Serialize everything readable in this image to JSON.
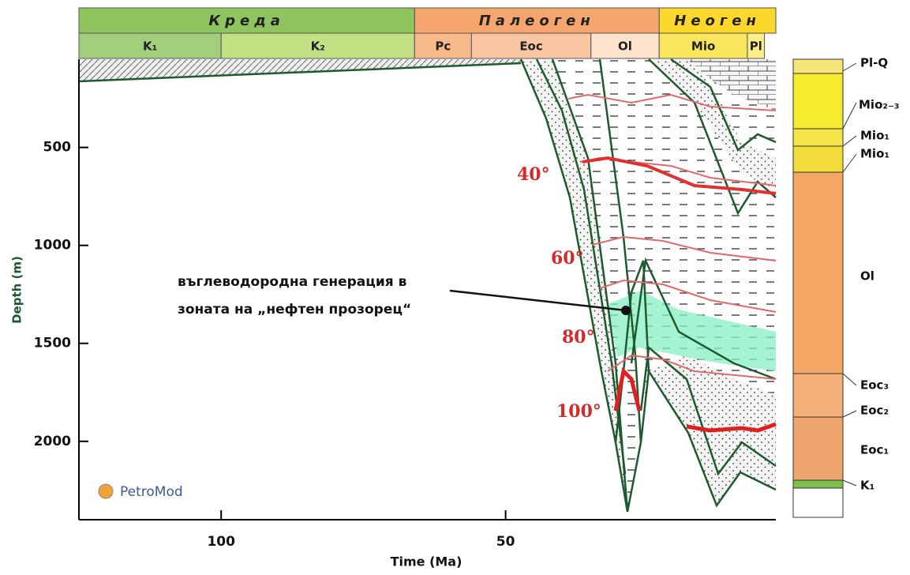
{
  "chart_data": {
    "type": "burial",
    "x_label": "Time (Ma)",
    "y_label": "Depth (m)",
    "xlim": [
      125,
      2.5
    ],
    "ylim": [
      50,
      2400
    ],
    "xticks": [
      100,
      50
    ],
    "yticks": [
      500,
      1000,
      1500,
      2000
    ],
    "periods": [
      {
        "name": "Креда",
        "range": [
          125,
          66
        ],
        "color": "#8fc45f"
      },
      {
        "name": "Палеоген",
        "range": [
          66,
          23
        ],
        "color": "#f5a66e"
      },
      {
        "name": "Неоген",
        "range": [
          23,
          2.5
        ],
        "color": "#fcd72c"
      }
    ],
    "stages": [
      {
        "name": "K₁",
        "range": [
          125,
          100
        ],
        "color": "#a3cf7c"
      },
      {
        "name": "K₂",
        "range": [
          100,
          66
        ],
        "color": "#c4e085"
      },
      {
        "name": "Pc",
        "range": [
          66,
          56
        ],
        "color": "#f7b98a"
      },
      {
        "name": "Eoc",
        "range": [
          56,
          35
        ],
        "color": "#f8c6a0"
      },
      {
        "name": "Ol",
        "range": [
          35,
          23
        ],
        "color": "#fde2cc"
      },
      {
        "name": "Mio",
        "range": [
          23,
          7.5
        ],
        "color": "#fbe55c"
      },
      {
        "name": "Pl",
        "range": [
          7.5,
          4.5
        ],
        "color": "#fdee8c"
      }
    ],
    "isotherms": [
      "40°",
      "60°",
      "80°",
      "100°"
    ],
    "annotation": [
      "въглеводородна генерация в",
      "зоната на „нефтен прозорец“"
    ],
    "column_labels": [
      "Pl-Q",
      "Mio₂₋₃",
      "Mio₁",
      "Mio₁",
      "Ol",
      "Eoc₃",
      "Eoc₂",
      "Eoc₁",
      "K₁"
    ],
    "logo": "PetroMod"
  }
}
